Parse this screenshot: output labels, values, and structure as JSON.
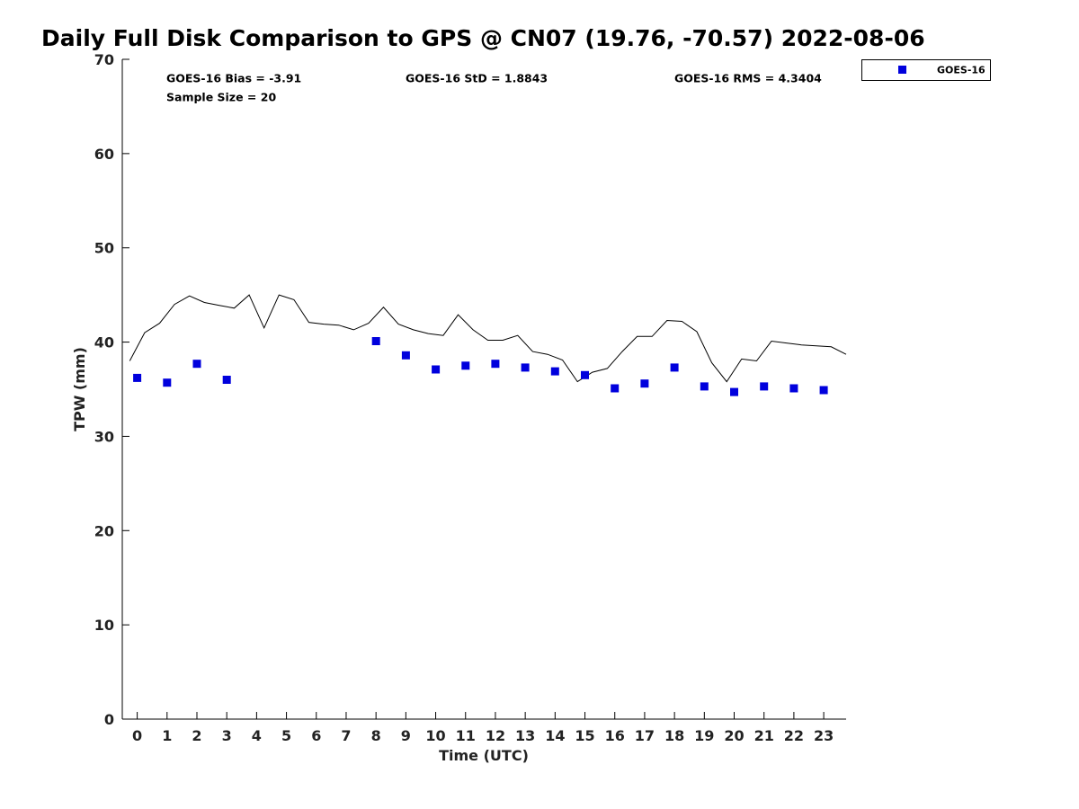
{
  "chart_data": {
    "type": "scatter",
    "title": "Daily Full Disk Comparison to GPS @ CN07 (19.76, -70.57) 2022-08-06",
    "xlabel": "Time (UTC)",
    "ylabel": "TPW (mm)",
    "xlim": [
      -0.5,
      23.75
    ],
    "ylim": [
      0,
      70
    ],
    "xticks": [
      0,
      1,
      2,
      3,
      4,
      5,
      6,
      7,
      8,
      9,
      10,
      11,
      12,
      13,
      14,
      15,
      16,
      17,
      18,
      19,
      20,
      21,
      22,
      23
    ],
    "yticks": [
      0,
      10,
      20,
      30,
      40,
      50,
      60,
      70
    ],
    "grid": false,
    "legend_position": "top-right",
    "annotations": {
      "bias": "GOES-16 Bias = -3.91",
      "std": "GOES-16 StD = 1.8843",
      "rms": "GOES-16 RMS = 4.3404",
      "sample_size": "Sample Size = 20"
    },
    "series": [
      {
        "name": "GOES-16",
        "kind": "scatter",
        "marker": "square",
        "color": "#0000dd",
        "x": [
          0,
          1,
          2,
          3,
          8,
          9,
          10,
          11,
          12,
          13,
          14,
          15,
          16,
          17,
          18,
          19,
          20,
          21,
          22,
          23
        ],
        "y": [
          36.2,
          35.7,
          37.7,
          36.0,
          40.1,
          38.6,
          37.1,
          37.5,
          37.7,
          37.3,
          36.9,
          36.5,
          35.1,
          35.6,
          37.3,
          35.3,
          34.7,
          35.3,
          35.1,
          34.9
        ]
      },
      {
        "name": "",
        "kind": "line",
        "color": "#000000",
        "x": [
          -0.25,
          0.25,
          0.75,
          1.25,
          1.75,
          2.25,
          2.75,
          3.25,
          3.75,
          4.25,
          4.75,
          5.25,
          5.75,
          6.25,
          6.75,
          7.25,
          7.75,
          8.25,
          8.75,
          9.25,
          9.75,
          10.25,
          10.75,
          11.25,
          11.75,
          12.25,
          12.75,
          13.25,
          13.75,
          14.25,
          14.75,
          15.25,
          15.75,
          16.25,
          16.75,
          17.25,
          17.75,
          18.25,
          18.75,
          19.25,
          19.75,
          20.25,
          20.75,
          21.25,
          21.75,
          22.25,
          22.75,
          23.25,
          23.75
        ],
        "y": [
          38.0,
          41.0,
          42.0,
          44.0,
          44.9,
          44.2,
          43.9,
          43.6,
          45.0,
          41.5,
          45.0,
          44.5,
          42.1,
          41.9,
          41.8,
          41.3,
          42.0,
          43.7,
          41.9,
          41.3,
          40.9,
          40.7,
          42.9,
          41.3,
          40.2,
          40.2,
          40.7,
          39.0,
          38.7,
          38.1,
          35.8,
          36.8,
          37.2,
          39.0,
          40.6,
          40.6,
          42.3,
          42.2,
          41.1,
          37.8,
          35.8,
          38.2,
          38.0,
          40.1,
          39.9,
          39.7,
          39.6,
          39.5,
          38.7
        ]
      }
    ]
  }
}
